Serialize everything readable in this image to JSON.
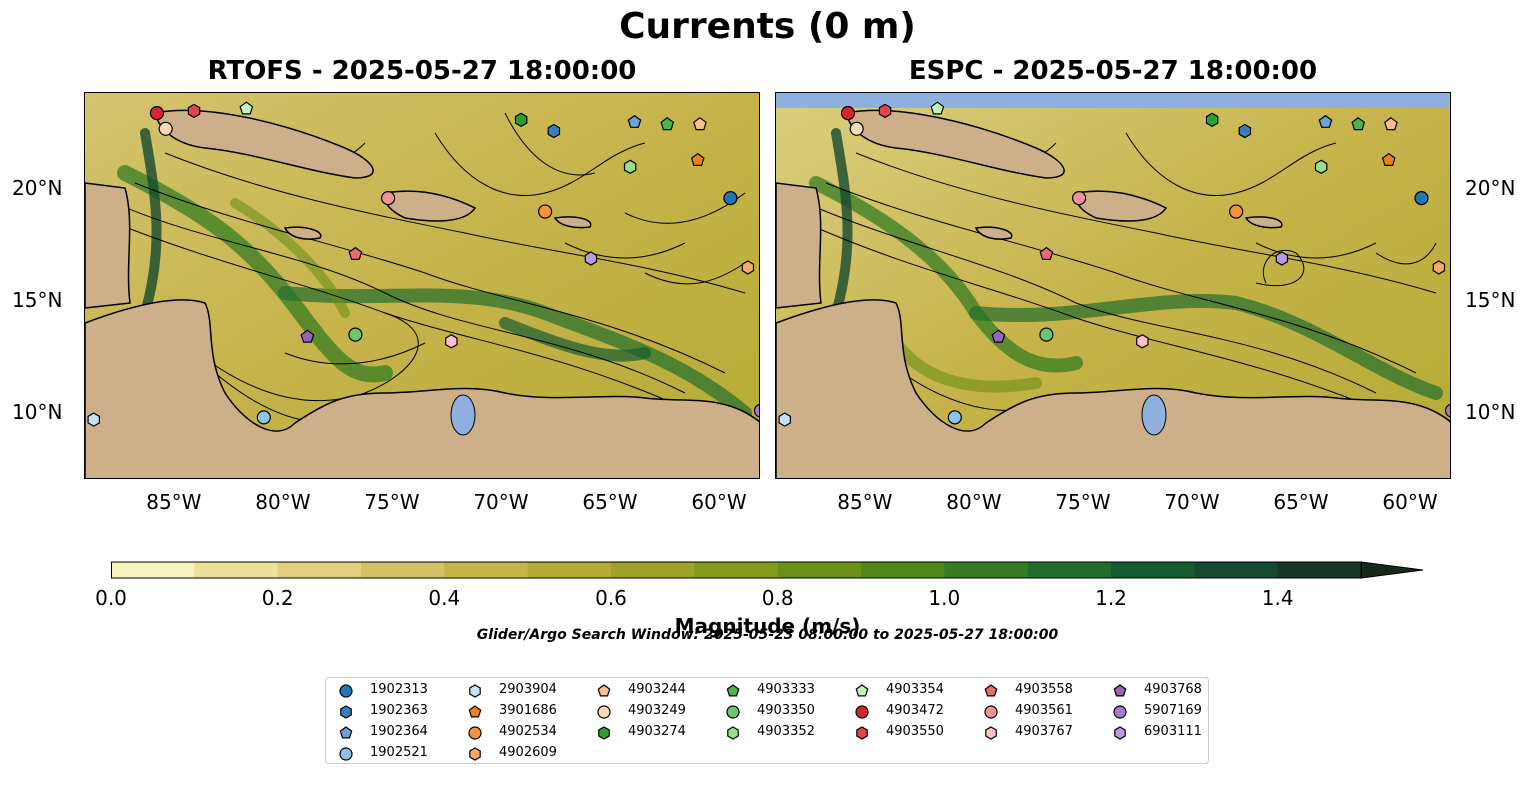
{
  "figure": {
    "suptitle": "Currents (0 m)",
    "left_title": "RTOFS - 2025-05-27 18:00:00",
    "right_title": "ESPC - 2025-05-27 18:00:00",
    "lon_labels": [
      "85°W",
      "80°W",
      "75°W",
      "70°W",
      "65°W",
      "60°W"
    ],
    "lat_labels": [
      "20°N",
      "15°N",
      "10°N"
    ],
    "search_window": "Glider/Argo Search Window: 2025-05-23 08:00:00 to 2025-05-27 18:00:00"
  },
  "colorbar": {
    "label": "Magnitude (m/s)",
    "ticks": [
      "0.0",
      "0.2",
      "0.4",
      "0.6",
      "0.8",
      "1.0",
      "1.2",
      "1.4"
    ],
    "range": [
      0.0,
      1.5
    ],
    "extend": "max",
    "colors": [
      "#f7f2c0",
      "#eedf9a",
      "#e3cf7c",
      "#d6c066",
      "#c6b34a",
      "#b5ab34",
      "#9ea326",
      "#849a1c",
      "#6a9018",
      "#508818",
      "#367c22",
      "#226d2c",
      "#175c30",
      "#154a2d",
      "#163725",
      "#17281a"
    ]
  },
  "map": {
    "ocean_color": "#c9b65c",
    "land_color": "#cdb08a",
    "lake_color": "#8fb0df",
    "extent": {
      "lon": [
        -89,
        -58
      ],
      "lat": [
        7,
        24.3
      ]
    }
  },
  "legend": {
    "items": [
      {
        "id": "1902313",
        "marker": "circle",
        "color": "#1f77b4"
      },
      {
        "id": "1902363",
        "marker": "hexagon",
        "color": "#3a7fbd"
      },
      {
        "id": "1902364",
        "marker": "pentagon",
        "color": "#6aa3d5"
      },
      {
        "id": "1902521",
        "marker": "circle",
        "color": "#8cc4ec"
      },
      {
        "id": "2903904",
        "marker": "hexagon",
        "color": "#c6e2f8"
      },
      {
        "id": "3901686",
        "marker": "pentagon",
        "color": "#f07e1b"
      },
      {
        "id": "4902534",
        "marker": "circle",
        "color": "#f5923e"
      },
      {
        "id": "4902609",
        "marker": "hexagon",
        "color": "#f9a867"
      },
      {
        "id": "4903244",
        "marker": "pentagon",
        "color": "#fdc08d"
      },
      {
        "id": "4903249",
        "marker": "circle",
        "color": "#fdd9b3"
      },
      {
        "id": "4903274",
        "marker": "hexagon",
        "color": "#2ca02c"
      },
      {
        "id": "4903333",
        "marker": "pentagon",
        "color": "#4bb44b"
      },
      {
        "id": "4903350",
        "marker": "circle",
        "color": "#6cc66c"
      },
      {
        "id": "4903352",
        "marker": "hexagon",
        "color": "#98df8a"
      },
      {
        "id": "4903354",
        "marker": "pentagon",
        "color": "#c5f5bd"
      },
      {
        "id": "4903472",
        "marker": "circle",
        "color": "#d62728"
      },
      {
        "id": "4903550",
        "marker": "hexagon",
        "color": "#e04547"
      },
      {
        "id": "4903558",
        "marker": "pentagon",
        "color": "#ea6a6f"
      },
      {
        "id": "4903561",
        "marker": "circle",
        "color": "#f19497"
      },
      {
        "id": "4903767",
        "marker": "hexagon",
        "color": "#ffc0c6"
      },
      {
        "id": "4903768",
        "marker": "pentagon",
        "color": "#9467bd"
      },
      {
        "id": "5907169",
        "marker": "circle",
        "color": "#a27ccc"
      },
      {
        "id": "6903111",
        "marker": "hexagon",
        "color": "#b89ae0"
      }
    ]
  },
  "float_positions": [
    {
      "id": "4903472",
      "lon": -85.7,
      "lat": 23.4
    },
    {
      "id": "4903550",
      "lon": -84.0,
      "lat": 23.5
    },
    {
      "id": "4903354",
      "lon": -81.6,
      "lat": 23.6
    },
    {
      "id": "4903249",
      "lon": -85.3,
      "lat": 22.7
    },
    {
      "id": "4903274",
      "lon": -69.0,
      "lat": 23.1
    },
    {
      "id": "1902363",
      "lon": -67.5,
      "lat": 22.6
    },
    {
      "id": "1902364",
      "lon": -63.8,
      "lat": 23.0
    },
    {
      "id": "4903333",
      "lon": -62.3,
      "lat": 22.9
    },
    {
      "id": "4903244",
      "lon": -60.8,
      "lat": 22.9
    },
    {
      "id": "4903352",
      "lon": -64.0,
      "lat": 21.0
    },
    {
      "id": "3901686",
      "lon": -60.9,
      "lat": 21.3
    },
    {
      "id": "1902313",
      "lon": -59.4,
      "lat": 19.6
    },
    {
      "id": "4903561",
      "lon": -75.1,
      "lat": 19.6
    },
    {
      "id": "4902534",
      "lon": -67.9,
      "lat": 19.0
    },
    {
      "id": "4903558",
      "lon": -76.6,
      "lat": 17.1
    },
    {
      "id": "6903111",
      "lon": -65.8,
      "lat": 16.9
    },
    {
      "id": "4902609",
      "lon": -58.6,
      "lat": 16.5
    },
    {
      "id": "4903768",
      "lon": -78.8,
      "lat": 13.4
    },
    {
      "id": "4903350",
      "lon": -76.6,
      "lat": 13.5
    },
    {
      "id": "4903767",
      "lon": -72.2,
      "lat": 13.2
    },
    {
      "id": "1902521",
      "lon": -80.8,
      "lat": 9.8
    },
    {
      "id": "2903904",
      "lon": -88.6,
      "lat": 9.7
    },
    {
      "id": "5907169",
      "lon": -58.0,
      "lat": 10.1
    }
  ]
}
